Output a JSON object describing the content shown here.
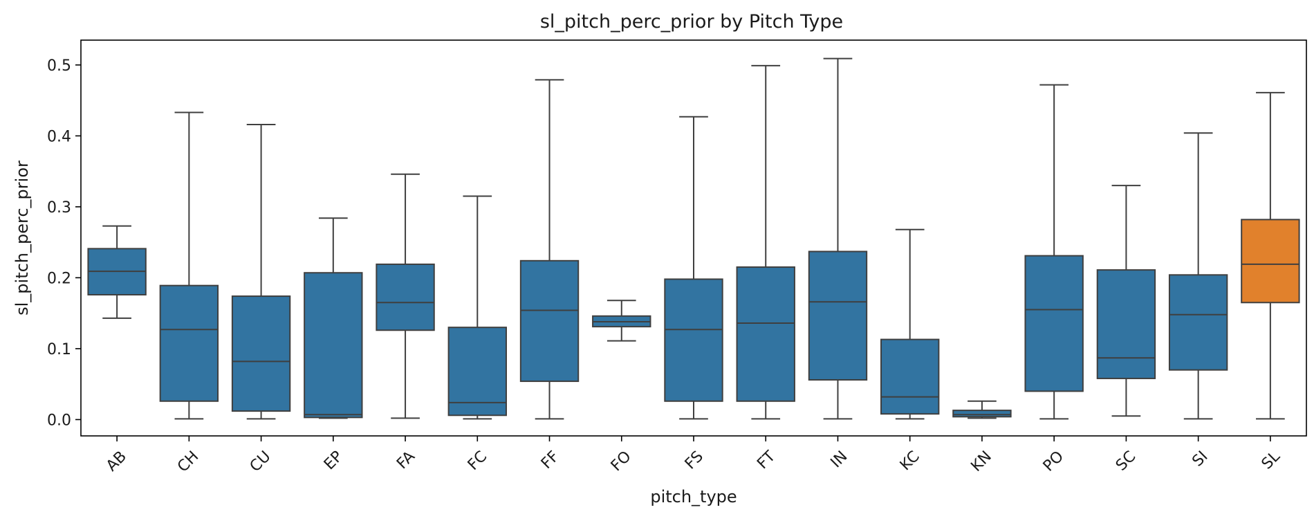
{
  "chart_data": {
    "type": "box",
    "title": "sl_pitch_perc_prior by Pitch Type",
    "xlabel": "pitch_type",
    "ylabel": "sl_pitch_perc_prior",
    "ylim": [
      -0.023,
      0.535
    ],
    "yticks": [
      0.0,
      0.1,
      0.2,
      0.3,
      0.4,
      0.5
    ],
    "ytick_labels": [
      "0.0",
      "0.1",
      "0.2",
      "0.3",
      "0.4",
      "0.5"
    ],
    "categories": [
      "AB",
      "CH",
      "CU",
      "EP",
      "FA",
      "FC",
      "FF",
      "FO",
      "FS",
      "FT",
      "IN",
      "KC",
      "KN",
      "PO",
      "SC",
      "SI",
      "SL"
    ],
    "boxes": [
      {
        "category": "AB",
        "whisker_low": 0.143,
        "q1": 0.176,
        "median": 0.209,
        "q3": 0.241,
        "whisker_high": 0.273
      },
      {
        "category": "CH",
        "whisker_low": 0.001,
        "q1": 0.026,
        "median": 0.127,
        "q3": 0.189,
        "whisker_high": 0.433
      },
      {
        "category": "CU",
        "whisker_low": 0.001,
        "q1": 0.012,
        "median": 0.082,
        "q3": 0.174,
        "whisker_high": 0.416
      },
      {
        "category": "EP",
        "whisker_low": 0.002,
        "q1": 0.003,
        "median": 0.007,
        "q3": 0.207,
        "whisker_high": 0.284
      },
      {
        "category": "FA",
        "whisker_low": 0.002,
        "q1": 0.126,
        "median": 0.165,
        "q3": 0.219,
        "whisker_high": 0.346
      },
      {
        "category": "FC",
        "whisker_low": 0.001,
        "q1": 0.006,
        "median": 0.024,
        "q3": 0.13,
        "whisker_high": 0.315
      },
      {
        "category": "FF",
        "whisker_low": 0.001,
        "q1": 0.054,
        "median": 0.154,
        "q3": 0.224,
        "whisker_high": 0.479
      },
      {
        "category": "FO",
        "whisker_low": 0.111,
        "q1": 0.131,
        "median": 0.138,
        "q3": 0.146,
        "whisker_high": 0.168
      },
      {
        "category": "FS",
        "whisker_low": 0.001,
        "q1": 0.026,
        "median": 0.127,
        "q3": 0.198,
        "whisker_high": 0.427
      },
      {
        "category": "FT",
        "whisker_low": 0.001,
        "q1": 0.026,
        "median": 0.136,
        "q3": 0.215,
        "whisker_high": 0.499
      },
      {
        "category": "IN",
        "whisker_low": 0.001,
        "q1": 0.056,
        "median": 0.166,
        "q3": 0.237,
        "whisker_high": 0.509
      },
      {
        "category": "KC",
        "whisker_low": 0.001,
        "q1": 0.008,
        "median": 0.032,
        "q3": 0.113,
        "whisker_high": 0.268
      },
      {
        "category": "KN",
        "whisker_low": 0.002,
        "q1": 0.004,
        "median": 0.007,
        "q3": 0.013,
        "whisker_high": 0.026
      },
      {
        "category": "PO",
        "whisker_low": 0.001,
        "q1": 0.04,
        "median": 0.155,
        "q3": 0.231,
        "whisker_high": 0.472
      },
      {
        "category": "SC",
        "whisker_low": 0.005,
        "q1": 0.058,
        "median": 0.087,
        "q3": 0.211,
        "whisker_high": 0.33
      },
      {
        "category": "SI",
        "whisker_low": 0.001,
        "q1": 0.07,
        "median": 0.148,
        "q3": 0.204,
        "whisker_high": 0.404
      },
      {
        "category": "SL",
        "whisker_low": 0.001,
        "q1": 0.165,
        "median": 0.219,
        "q3": 0.282,
        "whisker_high": 0.461
      }
    ],
    "grid": false,
    "legend": "none"
  },
  "colors": {
    "default_box": "#3274a1",
    "highlight_box": "#e1812c",
    "highlight_category": "SL",
    "line": "#3f3f3f",
    "axis": "#000000"
  }
}
